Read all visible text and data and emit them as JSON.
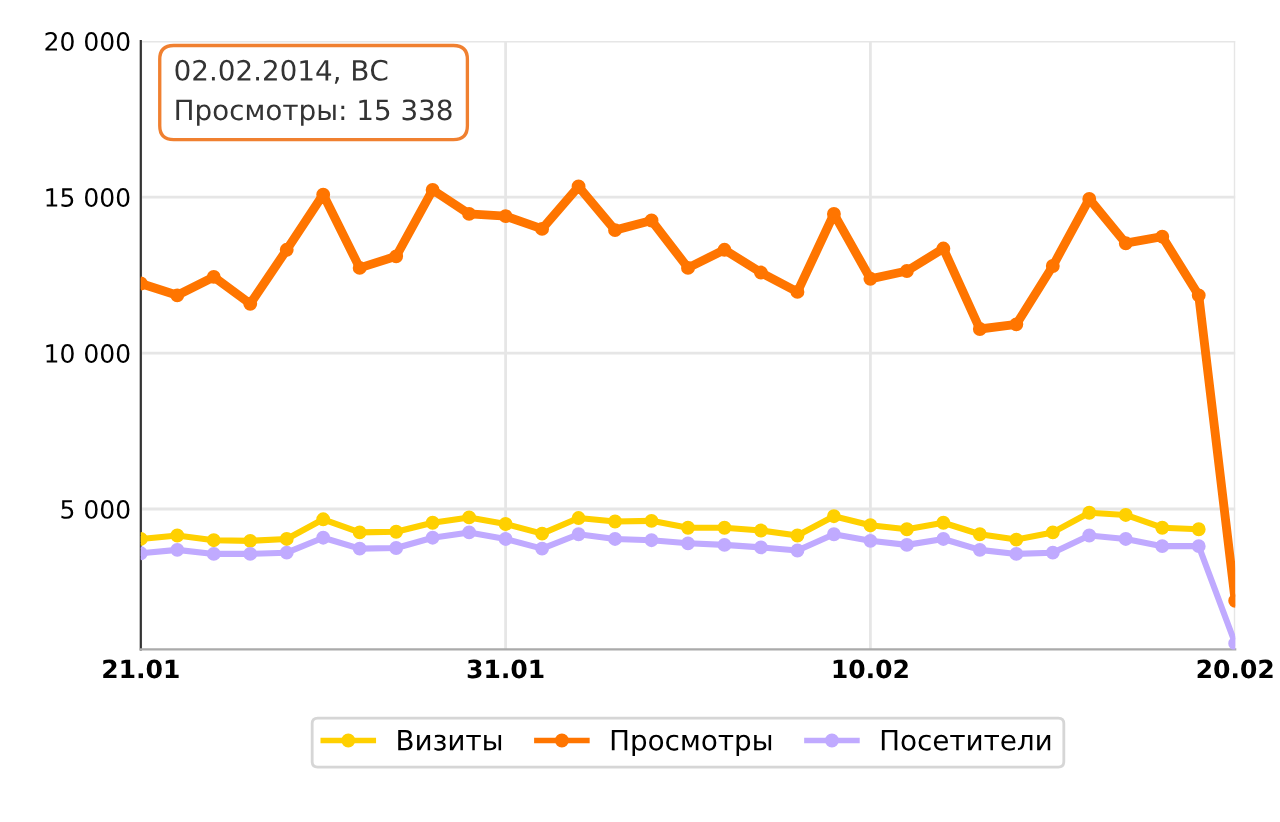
{
  "chart_data": {
    "type": "line",
    "x": [
      "2014-01-21",
      "2014-01-22",
      "2014-01-23",
      "2014-01-24",
      "2014-01-25",
      "2014-01-26",
      "2014-01-27",
      "2014-01-28",
      "2014-01-29",
      "2014-01-30",
      "2014-01-31",
      "2014-02-01",
      "2014-02-02",
      "2014-02-03",
      "2014-02-04",
      "2014-02-05",
      "2014-02-06",
      "2014-02-07",
      "2014-02-08",
      "2014-02-09",
      "2014-02-10",
      "2014-02-11",
      "2014-02-12",
      "2014-02-13",
      "2014-02-14",
      "2014-02-15",
      "2014-02-16",
      "2014-02-17",
      "2014-02-18",
      "2014-02-19",
      "2014-02-20"
    ],
    "series": [
      {
        "name": "Визиты",
        "color": "#ffd000",
        "values": [
          4040,
          4150,
          4000,
          3980,
          4040,
          4670,
          4250,
          4270,
          4560,
          4730,
          4520,
          4210,
          4710,
          4600,
          4620,
          4400,
          4400,
          4310,
          4150,
          4770,
          4480,
          4350,
          4560,
          4190,
          4020,
          4250,
          4880,
          4810,
          4400,
          4350,
          null
        ]
      },
      {
        "name": "Просмотры",
        "color": "#ff7500",
        "values": [
          12230,
          11850,
          12440,
          11580,
          13310,
          15080,
          12730,
          13100,
          15230,
          14460,
          14390,
          13980,
          15338,
          13940,
          14250,
          12730,
          13310,
          12580,
          11960,
          14460,
          12380,
          12630,
          13350,
          10770,
          10920,
          12790,
          14940,
          13520,
          13730,
          11850,
          2060
        ]
      },
      {
        "name": "Посетители",
        "color": "#c0aaff",
        "values": [
          3580,
          3690,
          3560,
          3560,
          3600,
          4080,
          3730,
          3750,
          4080,
          4250,
          4040,
          3730,
          4190,
          4040,
          4000,
          3900,
          3850,
          3770,
          3670,
          4190,
          3980,
          3850,
          4040,
          3690,
          3560,
          3600,
          4150,
          4040,
          3810,
          3810,
          690
        ]
      }
    ],
    "xlim": [
      "2014-01-21",
      "2014-02-20"
    ],
    "xticks": [
      {
        "value": "2014-01-21",
        "label": "21.01"
      },
      {
        "value": "2014-01-31",
        "label": "31.01"
      },
      {
        "value": "2014-02-10",
        "label": "10.02"
      },
      {
        "value": "2014-02-20",
        "label": "20.02"
      }
    ],
    "ylim": [
      500,
      20000
    ],
    "yticks": [
      {
        "value": 5000,
        "label": "5 000"
      },
      {
        "value": 10000,
        "label": "10 000"
      },
      {
        "value": 15000,
        "label": "15 000"
      },
      {
        "value": 20000,
        "label": "20 000"
      }
    ],
    "grid": true,
    "legend": "bottom",
    "marker": "circle",
    "line_style": "solid",
    "annotations": [
      "02.02.2014, ВС\nПросмотры: 15 338"
    ]
  }
}
